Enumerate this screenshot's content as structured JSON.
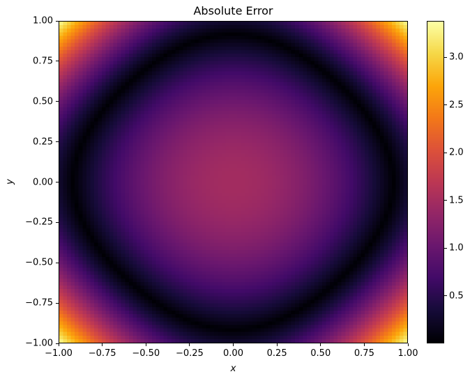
{
  "figure": {
    "title": "Absolute Error",
    "background_color": "#ffffff",
    "text_color": "#000000"
  },
  "chart_data": {
    "type": "heatmap",
    "title": "Absolute Error",
    "xlabel": "x",
    "ylabel": "y",
    "x_range": [
      -1,
      1
    ],
    "y_range": [
      -1,
      1
    ],
    "resolution": 90,
    "grid": "off",
    "legend": "none",
    "value_formula": "abs(a*(x^2 + y^2) + b*x^2*y^2 - c)",
    "formula_params": {
      "a": 1.75,
      "b": 1.36,
      "c": 1.48
    },
    "vmin": 0,
    "vmax": 3.38,
    "colormap": {
      "name": "inferno",
      "stops": [
        "#000004",
        "#160b39",
        "#420a68",
        "#6a176e",
        "#932667",
        "#bc3754",
        "#dd513a",
        "#f37819",
        "#fca50a",
        "#f6d746",
        "#fcffa4"
      ]
    },
    "x_ticks": {
      "values": [
        -1,
        -0.75,
        -0.5,
        -0.25,
        0,
        0.25,
        0.5,
        0.75,
        1
      ],
      "labels": [
        "−1.00",
        "−0.75",
        "−0.50",
        "−0.25",
        "0.00",
        "0.25",
        "0.50",
        "0.75",
        "1.00"
      ]
    },
    "y_ticks": {
      "values": [
        1,
        0.75,
        0.5,
        0.25,
        0,
        -0.25,
        -0.5,
        -0.75,
        -1
      ],
      "labels": [
        "1.00",
        "0.75",
        "0.50",
        "0.25",
        "0.00",
        "−0.25",
        "−0.50",
        "−0.75",
        "−1.00"
      ]
    },
    "colorbar": {
      "position": "right",
      "tick_values": [
        0.5,
        1.0,
        1.5,
        2.0,
        2.5,
        3.0
      ],
      "tick_labels": [
        "0.5",
        "1.0",
        "1.5",
        "2.0",
        "2.5",
        "3.0"
      ]
    },
    "sample_grid": {
      "x": [
        -1,
        -0.75,
        -0.5,
        -0.25,
        0,
        0.25,
        0.5,
        0.75,
        1
      ],
      "y": [
        1,
        0.75,
        0.5,
        0.25,
        0,
        -0.25,
        -0.5,
        -0.75,
        -1
      ],
      "values": [
        [
          3.38,
          2.02,
          1.05,
          0.46,
          0.27,
          0.46,
          1.05,
          2.02,
          3.38
        ],
        [
          2.02,
          0.92,
          0.13,
          0.34,
          0.5,
          0.34,
          0.13,
          0.92,
          2.02
        ],
        [
          1.05,
          0.13,
          0.52,
          0.91,
          1.04,
          0.91,
          0.52,
          0.13,
          1.05
        ],
        [
          0.46,
          0.34,
          0.91,
          1.26,
          1.37,
          1.26,
          0.91,
          0.34,
          0.46
        ],
        [
          0.27,
          0.5,
          1.04,
          1.37,
          1.48,
          1.37,
          1.04,
          0.5,
          0.27
        ],
        [
          0.46,
          0.34,
          0.91,
          1.26,
          1.37,
          1.26,
          0.91,
          0.34,
          0.46
        ],
        [
          1.05,
          0.13,
          0.52,
          0.91,
          1.04,
          0.91,
          0.52,
          0.13,
          1.05
        ],
        [
          2.02,
          0.92,
          0.13,
          0.34,
          0.5,
          0.34,
          0.13,
          0.92,
          2.02
        ],
        [
          3.38,
          2.02,
          1.05,
          0.46,
          0.27,
          0.46,
          1.05,
          2.02,
          3.38
        ]
      ]
    }
  }
}
